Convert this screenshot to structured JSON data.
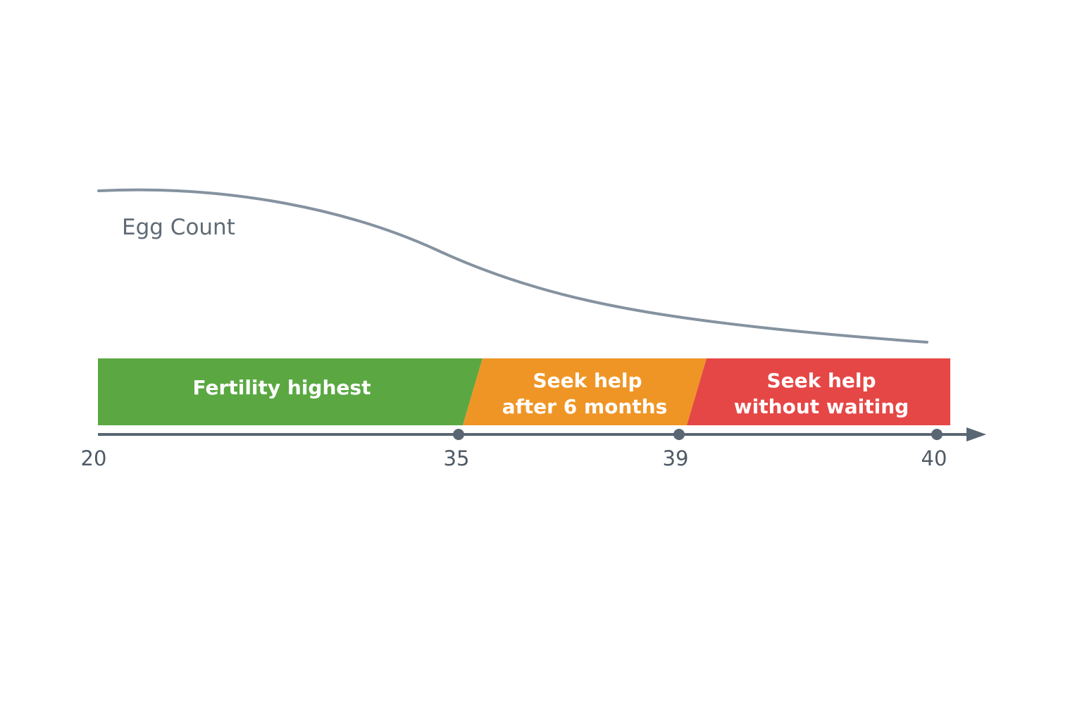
{
  "curve": {
    "label": "Egg Count",
    "color": "#8592a0"
  },
  "zones": [
    {
      "lines": [
        "Fertility highest"
      ],
      "color": "#5ba843"
    },
    {
      "lines": [
        "Seek help",
        "after 6 months"
      ],
      "color": "#ef9526"
    },
    {
      "lines": [
        "Seek help",
        "without waiting"
      ],
      "color": "#e54746"
    }
  ],
  "axis": {
    "color": "#5b6673",
    "ticks": [
      {
        "label": "20",
        "marker": false
      },
      {
        "label": "35",
        "marker": true
      },
      {
        "label": "39",
        "marker": true
      },
      {
        "label": "40",
        "marker": true
      }
    ]
  }
}
